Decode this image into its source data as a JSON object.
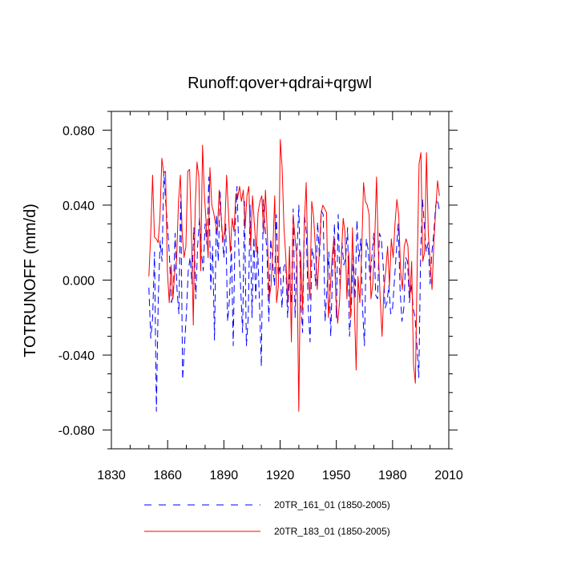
{
  "chart_data": {
    "type": "line",
    "title": "Runoff:qover+qdrai+qrgwl",
    "xlabel": "",
    "ylabel": "TOTRUNOFF  (mm/d)",
    "xlim": [
      1830,
      2010
    ],
    "ylim": [
      -0.09,
      0.09
    ],
    "xticks": [
      1830,
      1860,
      1890,
      1920,
      1950,
      1980,
      2010
    ],
    "xtick_labels": [
      "1830",
      "1860",
      "1890",
      "1920",
      "1950",
      "1980",
      "2010"
    ],
    "yticks": [
      -0.08,
      -0.04,
      0.0,
      0.04,
      0.08
    ],
    "ytick_labels": [
      "-0.080",
      "-0.040",
      "0.000",
      "0.040",
      "0.080"
    ],
    "x_start": 1850,
    "x_end": 2005,
    "legend_position": "bottom",
    "series": [
      {
        "name": "20TR_161_01 (1850-2005)",
        "color": "#0000ff",
        "style": "dashed",
        "values": [
          -0.004,
          -0.031,
          -0.02,
          0.015,
          -0.07,
          -0.01,
          0.021,
          0.01,
          0.058,
          0.041,
          0.028,
          0.012,
          -0.012,
          -0.008,
          0.025,
          -0.005,
          -0.018,
          0.046,
          -0.053,
          -0.035,
          -0.018,
          0.005,
          0.012,
          -0.002,
          0.028,
          -0.01,
          0.018,
          0.033,
          0.015,
          0.005,
          0.03,
          0.019,
          0.055,
          -0.005,
          0.018,
          -0.032,
          0.035,
          0.01,
          0.047,
          0.025,
          0.012,
          0.03,
          -0.022,
          -0.01,
          0.018,
          -0.035,
          0.028,
          0.05,
          0.015,
          -0.005,
          -0.028,
          0.042,
          -0.035,
          -0.02,
          0.04,
          -0.02,
          0.023,
          -0.01,
          0.018,
          -0.012,
          -0.046,
          0.043,
          0.028,
          0.015,
          -0.022,
          0.022,
          0.01,
          -0.003,
          0.035,
          0.002,
          0.008,
          -0.015,
          0.007,
          0.009,
          -0.02,
          0.003,
          -0.012,
          0.038,
          -0.02,
          0.015,
          0.04,
          -0.011,
          -0.028,
          0.035,
          0.025,
          -0.015,
          -0.033,
          0.017,
          0.012,
          -0.003,
          0.031,
          0.012,
          0.037,
          0.035,
          -0.022,
          -0.005,
          0.015,
          -0.03,
          0.005,
          0.03,
          -0.02,
          0.035,
          -0.005,
          0.02,
          0.008,
          0.012,
          0.028,
          -0.03,
          -0.015,
          0.015,
          -0.01,
          0.032,
          0.01,
          0.022,
          -0.015,
          -0.035,
          0.022,
          0.016,
          0.0,
          0.013,
          0.025,
          -0.008,
          -0.01,
          0.025,
          0.022,
          0.008,
          -0.015,
          -0.012,
          -0.003,
          -0.018,
          -0.015,
          0.0,
          0.015,
          0.03,
          -0.005,
          -0.022,
          -0.015,
          0.012,
          0.01,
          -0.012,
          -0.002,
          -0.015,
          -0.02,
          -0.035,
          -0.052,
          0.015,
          0.043,
          0.028,
          0.015,
          0.02,
          -0.002,
          0.015,
          0.025,
          0.04,
          0.043,
          0.037
        ]
      },
      {
        "name": "20TR_183_01 (1850-2005)",
        "color": "#ff0000",
        "style": "solid",
        "values": [
          0.002,
          0.025,
          0.056,
          0.023,
          0.022,
          0.02,
          0.034,
          0.065,
          0.057,
          0.058,
          0.005,
          -0.012,
          0.008,
          -0.01,
          0.005,
          0.011,
          0.042,
          0.056,
          0.025,
          0.012,
          0.018,
          0.058,
          0.059,
          0.025,
          -0.024,
          0.038,
          0.063,
          0.055,
          0.005,
          0.072,
          0.045,
          0.03,
          0.012,
          0.06,
          0.04,
          0.036,
          0.03,
          0.026,
          0.048,
          0.035,
          0.02,
          0.027,
          0.056,
          0.036,
          0.015,
          0.033,
          0.026,
          0.046,
          0.044,
          0.05,
          0.042,
          0.048,
          0.028,
          0.045,
          0.05,
          0.018,
          0.045,
          0.03,
          0.015,
          0.036,
          0.042,
          0.045,
          0.025,
          0.048,
          0.025,
          -0.01,
          -0.003,
          0.016,
          0.045,
          -0.012,
          -0.003,
          0.075,
          0.06,
          0.028,
          0.012,
          -0.012,
          0.018,
          -0.033,
          0.035,
          0.022,
          0.012,
          -0.07,
          0.015,
          -0.016,
          0.03,
          0.052,
          0.005,
          -0.01,
          0.042,
          0.034,
          0.017,
          -0.005,
          0.013,
          0.035,
          0.04,
          0.038,
          0.036,
          -0.02,
          -0.005,
          0.012,
          0.023,
          -0.008,
          -0.023,
          -0.012,
          0.012,
          0.033,
          0.025,
          -0.01,
          0.015,
          -0.02,
          0.028,
          -0.012,
          -0.048,
          0.002,
          -0.012,
          0.015,
          0.052,
          0.042,
          0.04,
          0.035,
          -0.01,
          -0.002,
          0.02,
          0.055,
          0.015,
          -0.01,
          -0.03,
          -0.005,
          0.005,
          0.018,
          -0.003,
          0.022,
          0.012,
          0.03,
          0.043,
          0.035,
          0.005,
          -0.005,
          0.018,
          0.022,
          0.018,
          -0.01,
          0.01,
          -0.045,
          -0.055,
          0.008,
          0.062,
          0.068,
          0.01,
          0.015,
          0.068,
          0.025,
          0.01,
          -0.005,
          0.02,
          0.038,
          0.053,
          0.045
        ]
      }
    ]
  }
}
